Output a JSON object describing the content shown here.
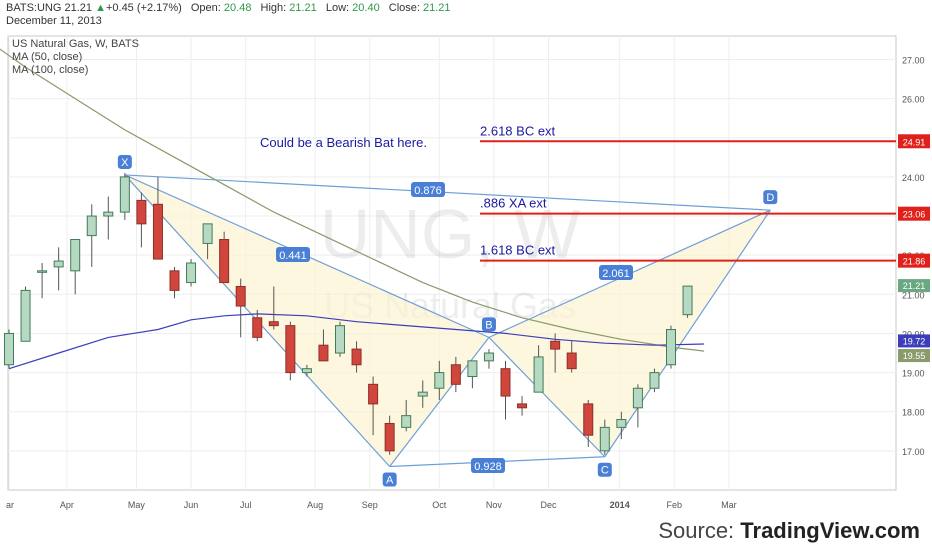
{
  "header": {
    "symbol": "BATS:UNG",
    "last": "21.21",
    "arrow": "▲",
    "change": "+0.45 (+2.17%)",
    "open_label": "Open:",
    "open": "20.48",
    "high_label": "High:",
    "high": "21.21",
    "low_label": "Low:",
    "low": "20.40",
    "close_label": "Close:",
    "close": "21.21",
    "date": "December 11, 2013"
  },
  "legend": {
    "title": "US Natural Gas, W, BATS",
    "ma50": "MA (50, close)",
    "ma100": "MA (100, close)"
  },
  "watermark": {
    "symbol": "UNG, W",
    "name": "US Natural Gas"
  },
  "annotation": "Could be a Bearish Bat here.",
  "source": {
    "prefix": "Source: ",
    "brand": "TradingView.com"
  },
  "colors": {
    "up": "#6aa882",
    "down": "#d0463c",
    "ma50": "#8a9a6a",
    "ma100": "#3d3dbb",
    "pattern": "#6f9fd8",
    "level": "#e0201a"
  },
  "chart_data": {
    "type": "candlestick",
    "title": "US Natural Gas, W, BATS",
    "ylim": [
      16.0,
      27.6
    ],
    "yticks": [
      17.0,
      18.0,
      19.0,
      20.0,
      21.0,
      22.0,
      23.0,
      24.0,
      25.0,
      26.0,
      27.0
    ],
    "ytick_labels": [
      "17.00",
      "18.00",
      "19.00",
      "20.00",
      "21.00",
      "22.00",
      "23.00",
      "24.00",
      "25.00",
      "26.00",
      "27.00"
    ],
    "xticks": [
      {
        "label": "ar",
        "w": 0
      },
      {
        "label": "Apr",
        "w": 3.5
      },
      {
        "label": "May",
        "w": 7.7
      },
      {
        "label": "Jun",
        "w": 11.0
      },
      {
        "label": "Jul",
        "w": 14.3
      },
      {
        "label": "Aug",
        "w": 18.5
      },
      {
        "label": "Sep",
        "w": 21.8
      },
      {
        "label": "Oct",
        "w": 26.0
      },
      {
        "label": "Nov",
        "w": 29.3
      },
      {
        "label": "Dec",
        "w": 32.6
      },
      {
        "label": "2014",
        "w": 36.9
      },
      {
        "label": "Feb",
        "w": 40.2
      },
      {
        "label": "Mar",
        "w": 43.5
      }
    ],
    "candles": [
      {
        "w": 0,
        "o": 19.2,
        "h": 20.1,
        "l": 19.1,
        "c": 20.0
      },
      {
        "w": 1,
        "o": 19.8,
        "h": 21.2,
        "l": 19.8,
        "c": 21.1
      },
      {
        "w": 2,
        "o": 21.6,
        "h": 21.8,
        "l": 20.9,
        "c": 21.6
      },
      {
        "w": 3,
        "o": 21.7,
        "h": 22.2,
        "l": 21.1,
        "c": 21.85
      },
      {
        "w": 4,
        "o": 21.6,
        "h": 22.4,
        "l": 21.0,
        "c": 22.4
      },
      {
        "w": 5,
        "o": 22.5,
        "h": 23.3,
        "l": 21.7,
        "c": 23.0
      },
      {
        "w": 6,
        "o": 23.0,
        "h": 23.5,
        "l": 22.4,
        "c": 23.1
      },
      {
        "w": 7,
        "o": 23.1,
        "h": 24.1,
        "l": 22.9,
        "c": 24.0
      },
      {
        "w": 8,
        "o": 23.4,
        "h": 23.6,
        "l": 22.2,
        "c": 22.8
      },
      {
        "w": 9,
        "o": 23.3,
        "h": 24.0,
        "l": 21.9,
        "c": 21.9
      },
      {
        "w": 10,
        "o": 21.6,
        "h": 21.7,
        "l": 20.9,
        "c": 21.1
      },
      {
        "w": 11,
        "o": 21.3,
        "h": 21.9,
        "l": 21.2,
        "c": 21.8
      },
      {
        "w": 12,
        "o": 22.3,
        "h": 22.8,
        "l": 21.9,
        "c": 22.8
      },
      {
        "w": 13,
        "o": 22.4,
        "h": 22.6,
        "l": 21.3,
        "c": 21.3
      },
      {
        "w": 14,
        "o": 21.2,
        "h": 21.4,
        "l": 19.9,
        "c": 20.7
      },
      {
        "w": 15,
        "o": 20.4,
        "h": 20.6,
        "l": 19.8,
        "c": 19.9
      },
      {
        "w": 16,
        "o": 20.3,
        "h": 21.2,
        "l": 20.1,
        "c": 20.2
      },
      {
        "w": 17,
        "o": 20.2,
        "h": 20.3,
        "l": 18.8,
        "c": 19.0
      },
      {
        "w": 18,
        "o": 19.0,
        "h": 19.2,
        "l": 18.9,
        "c": 19.1
      },
      {
        "w": 19,
        "o": 19.7,
        "h": 20.1,
        "l": 19.3,
        "c": 19.3
      },
      {
        "w": 20,
        "o": 19.5,
        "h": 20.3,
        "l": 19.4,
        "c": 20.2
      },
      {
        "w": 21,
        "o": 19.6,
        "h": 19.8,
        "l": 19.0,
        "c": 19.2
      },
      {
        "w": 22,
        "o": 18.7,
        "h": 18.9,
        "l": 17.4,
        "c": 18.2
      },
      {
        "w": 23,
        "o": 17.7,
        "h": 17.9,
        "l": 16.9,
        "c": 17.0
      },
      {
        "w": 24,
        "o": 17.6,
        "h": 18.3,
        "l": 17.5,
        "c": 17.9
      },
      {
        "w": 25,
        "o": 18.4,
        "h": 18.8,
        "l": 18.1,
        "c": 18.5
      },
      {
        "w": 26,
        "o": 18.6,
        "h": 19.3,
        "l": 18.3,
        "c": 19.0
      },
      {
        "w": 27,
        "o": 19.2,
        "h": 19.4,
        "l": 18.5,
        "c": 18.7
      },
      {
        "w": 28,
        "o": 18.9,
        "h": 19.3,
        "l": 18.6,
        "c": 19.3
      },
      {
        "w": 29,
        "o": 19.3,
        "h": 19.6,
        "l": 19.1,
        "c": 19.5
      },
      {
        "w": 30,
        "o": 19.1,
        "h": 19.3,
        "l": 17.8,
        "c": 18.4
      },
      {
        "w": 31,
        "o": 18.2,
        "h": 18.4,
        "l": 17.9,
        "c": 18.1
      },
      {
        "w": 32,
        "o": 18.5,
        "h": 19.7,
        "l": 18.5,
        "c": 19.4
      },
      {
        "w": 33,
        "o": 19.8,
        "h": 20.0,
        "l": 19.0,
        "c": 19.6
      },
      {
        "w": 34,
        "o": 19.5,
        "h": 19.8,
        "l": 19.0,
        "c": 19.1
      },
      {
        "w": 35,
        "o": 18.2,
        "h": 18.3,
        "l": 17.1,
        "c": 17.4
      },
      {
        "w": 36,
        "o": 17.0,
        "h": 17.8,
        "l": 16.9,
        "c": 17.6
      },
      {
        "w": 37,
        "o": 17.6,
        "h": 18.0,
        "l": 17.3,
        "c": 17.8
      },
      {
        "w": 38,
        "o": 18.1,
        "h": 18.7,
        "l": 17.6,
        "c": 18.6
      },
      {
        "w": 39,
        "o": 18.6,
        "h": 19.1,
        "l": 18.5,
        "c": 19.0
      },
      {
        "w": 40,
        "o": 19.2,
        "h": 20.2,
        "l": 19.1,
        "c": 20.1
      },
      {
        "w": 41,
        "o": 20.48,
        "h": 21.21,
        "l": 20.4,
        "c": 21.21
      }
    ],
    "series": [
      {
        "name": "MA (50, close)",
        "points": [
          [
            -1,
            27.4
          ],
          [
            1,
            26.8
          ],
          [
            4,
            26.0
          ],
          [
            7,
            25.2
          ],
          [
            10,
            24.5
          ],
          [
            13,
            23.8
          ],
          [
            16,
            23.1
          ],
          [
            19,
            22.5
          ],
          [
            22,
            21.9
          ],
          [
            25,
            21.3
          ],
          [
            28,
            20.8
          ],
          [
            31,
            20.4
          ],
          [
            34,
            20.1
          ],
          [
            37,
            19.85
          ],
          [
            40,
            19.65
          ],
          [
            42,
            19.55
          ]
        ]
      },
      {
        "name": "MA (100, close)",
        "points": [
          [
            0,
            19.1
          ],
          [
            3,
            19.5
          ],
          [
            6,
            19.9
          ],
          [
            9,
            20.1
          ],
          [
            11,
            20.35
          ],
          [
            13,
            20.45
          ],
          [
            15,
            20.5
          ],
          [
            18,
            20.45
          ],
          [
            21,
            20.3
          ],
          [
            24,
            20.2
          ],
          [
            27,
            20.1
          ],
          [
            30,
            20.0
          ],
          [
            33,
            19.85
          ],
          [
            36,
            19.75
          ],
          [
            39,
            19.7
          ],
          [
            42,
            19.73
          ]
        ]
      }
    ],
    "pattern": {
      "points": [
        {
          "label": "X",
          "w": 7,
          "v": 24.05
        },
        {
          "label": "A",
          "w": 23,
          "v": 16.6
        },
        {
          "label": "B",
          "w": 29,
          "v": 19.9
        },
        {
          "label": "C",
          "w": 36,
          "v": 16.85
        },
        {
          "label": "D",
          "w": 46,
          "v": 23.15
        }
      ],
      "ratios": [
        {
          "label": "0.876",
          "from": "X",
          "to": "D"
        },
        {
          "label": "0.441",
          "from": "A",
          "to": "X"
        },
        {
          "label": "0.928",
          "from": "A",
          "to": "C"
        },
        {
          "label": "2.061",
          "from": "B",
          "to": "D"
        }
      ]
    },
    "levels": [
      {
        "text": "2.618 BC ext",
        "value": 24.91,
        "price_label": "24.91"
      },
      {
        "text": ".886 XA ext",
        "value": 23.06,
        "price_label": "23.06"
      },
      {
        "text": "1.618 BC ext",
        "value": 21.86,
        "price_label": "21.86"
      }
    ],
    "price_tags": [
      {
        "value": 21.21,
        "label": "21.21",
        "color": "#6aa882"
      },
      {
        "value": 19.72,
        "label": "19.72",
        "color": "#3d3dbb"
      },
      {
        "value": 19.55,
        "label": "19.55",
        "color": "#8a9a6a"
      }
    ]
  }
}
